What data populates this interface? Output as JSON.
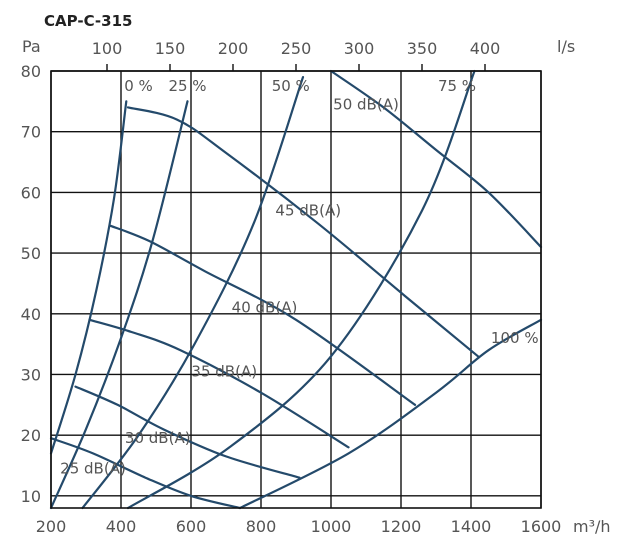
{
  "chart_data": {
    "type": "line",
    "title": "CAP-C-315",
    "ylabel": "Pa",
    "xlabel_bottom": "m³/h",
    "xlabel_top": "l/s",
    "xlim": [
      200,
      1600
    ],
    "ylim": [
      8,
      80
    ],
    "x_ticks": [
      "200",
      "400",
      "600",
      "800",
      "1000",
      "1200",
      "1400",
      "1600"
    ],
    "x_ticks_top": [
      {
        "label": "100",
        "m3h": 360
      },
      {
        "label": "150",
        "m3h": 540
      },
      {
        "label": "200",
        "m3h": 720
      },
      {
        "label": "250",
        "m3h": 900
      },
      {
        "label": "300",
        "m3h": 1080
      },
      {
        "label": "350",
        "m3h": 1260
      },
      {
        "label": "400",
        "m3h": 1440
      }
    ],
    "y_ticks": [
      "10",
      "20",
      "30",
      "40",
      "50",
      "60",
      "70",
      "80"
    ],
    "y_tick_values": [
      10,
      20,
      30,
      40,
      50,
      60,
      70,
      80
    ],
    "grid": true,
    "system_curves": [
      {
        "name": "0 %",
        "label_pos": [
          450,
          77.5
        ],
        "points": [
          [
            200,
            17
          ],
          [
            270,
            30
          ],
          [
            330,
            44
          ],
          [
            380,
            59
          ],
          [
            415,
            75
          ]
        ]
      },
      {
        "name": "25 %",
        "label_pos": [
          590,
          77.5
        ],
        "points": [
          [
            200,
            8
          ],
          [
            300,
            21
          ],
          [
            400,
            36
          ],
          [
            490,
            52
          ],
          [
            590,
            75
          ]
        ]
      },
      {
        "name": "50 %",
        "label_pos": [
          885,
          77.5
        ],
        "points": [
          [
            290,
            8
          ],
          [
            450,
            20
          ],
          [
            610,
            35
          ],
          [
            780,
            55
          ],
          [
            920,
            79
          ]
        ]
      },
      {
        "name": "75 %",
        "label_pos": [
          1360,
          77.5
        ],
        "points": [
          [
            420,
            8
          ],
          [
            710,
            18
          ],
          [
            1000,
            33
          ],
          [
            1260,
            57
          ],
          [
            1410,
            80
          ]
        ]
      },
      {
        "name": "100 %",
        "label_pos": [
          1525,
          36
        ],
        "points": [
          [
            740,
            8
          ],
          [
            1050,
            17
          ],
          [
            1300,
            27
          ],
          [
            1450,
            34
          ],
          [
            1600,
            39
          ]
        ]
      }
    ],
    "sound_curves": [
      {
        "name": "25 dB(A)",
        "label_pos": [
          320,
          14.5
        ],
        "points": [
          [
            200,
            19.5
          ],
          [
            320,
            17
          ],
          [
            470,
            13
          ],
          [
            600,
            10
          ],
          [
            740,
            8
          ]
        ]
      },
      {
        "name": "30 dB(A)",
        "label_pos": [
          505,
          19.5
        ],
        "points": [
          [
            270,
            28
          ],
          [
            390,
            25
          ],
          [
            520,
            21
          ],
          [
            700,
            16.5
          ],
          [
            910,
            13
          ]
        ]
      },
      {
        "name": "35 dB(A)",
        "label_pos": [
          695,
          30.5
        ],
        "points": [
          [
            310,
            39
          ],
          [
            430,
            37
          ],
          [
            570,
            34
          ],
          [
            800,
            27
          ],
          [
            1050,
            18
          ]
        ]
      },
      {
        "name": "40 dB(A)",
        "label_pos": [
          810,
          41
        ],
        "points": [
          [
            370,
            54.5
          ],
          [
            480,
            52
          ],
          [
            640,
            47
          ],
          [
            900,
            39
          ],
          [
            1240,
            25
          ]
        ]
      },
      {
        "name": "45 dB(A)",
        "label_pos": [
          935,
          57
        ],
        "points": [
          [
            420,
            74
          ],
          [
            560,
            72
          ],
          [
            700,
            66.5
          ],
          [
            960,
            55
          ],
          [
            1210,
            43
          ],
          [
            1420,
            33
          ]
        ]
      },
      {
        "name": "50 dB(A)",
        "label_pos": [
          1100,
          74.5
        ],
        "points": [
          [
            1000,
            80
          ],
          [
            1150,
            74
          ],
          [
            1300,
            67
          ],
          [
            1450,
            60
          ],
          [
            1600,
            51
          ]
        ]
      }
    ]
  }
}
